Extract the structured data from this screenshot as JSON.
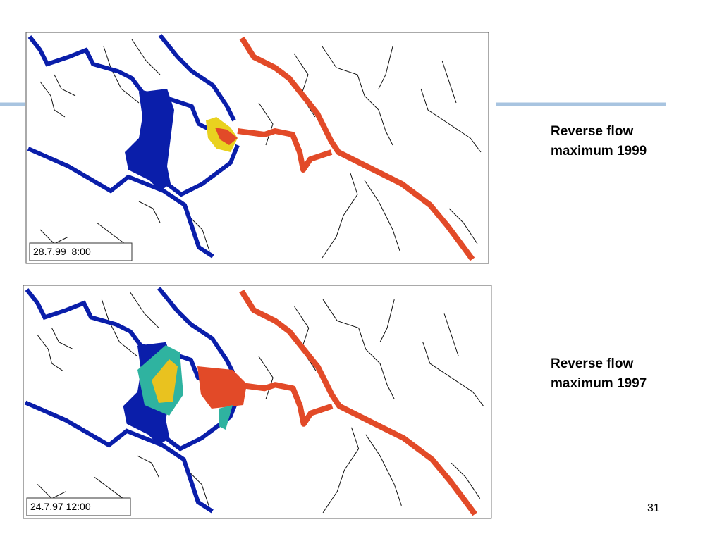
{
  "slide": {
    "number": "31",
    "panels": [
      {
        "timestamp": "28.7.99  8:00",
        "caption": [
          "Reverse flow",
          "maximum 1999"
        ]
      },
      {
        "timestamp": "24.7.97 12:00",
        "caption": [
          "Reverse flow",
          "maximum 1997"
        ]
      }
    ]
  }
}
